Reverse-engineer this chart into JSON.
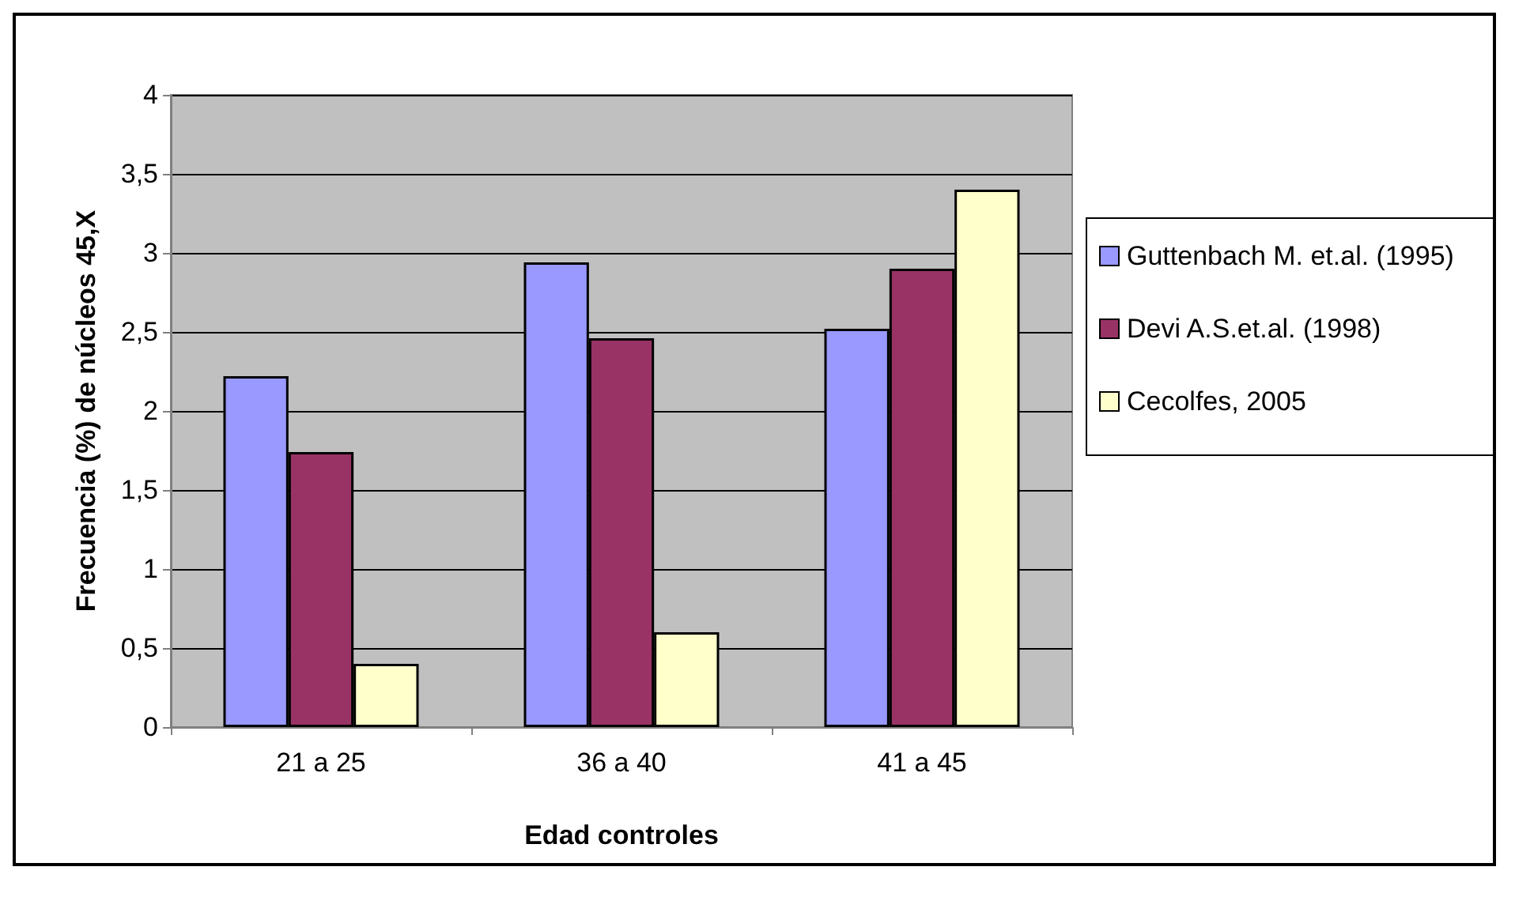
{
  "chart_data": {
    "type": "bar",
    "xlabel": "Edad controles",
    "ylabel": "Frecuencia (%) de núcleos 45,X",
    "categories": [
      "21 a 25",
      "36 a 40",
      "41 a 45"
    ],
    "series": [
      {
        "name": "Guttenbach M. et.al. (1995)",
        "color": "#9999ff",
        "values": [
          2.22,
          2.94,
          2.52
        ]
      },
      {
        "name": "Devi A.S.et.al. (1998)",
        "color": "#993366",
        "values": [
          1.74,
          2.46,
          2.9
        ]
      },
      {
        "name": "Cecolfes, 2005",
        "color": "#ffffcc",
        "values": [
          0.4,
          0.6,
          3.4
        ]
      }
    ],
    "ylim": [
      0,
      4
    ],
    "yticks": [
      0,
      {
        "value": 0.5,
        "label": "0,5"
      },
      1,
      {
        "value": 1.5,
        "label": "1,5"
      },
      2,
      {
        "value": 2.5,
        "label": "2,5"
      },
      3,
      {
        "value": 3.5,
        "label": "3,5"
      },
      4
    ],
    "grid": "y",
    "legend": "right"
  }
}
